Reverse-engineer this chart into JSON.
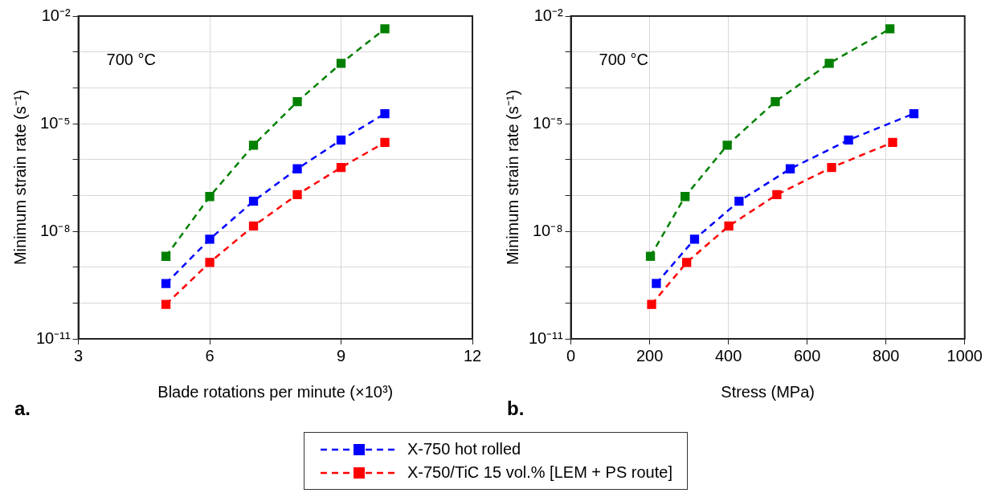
{
  "chart_data": [
    {
      "type": "line",
      "xlabel": "Blade rotations per minute (×10³)",
      "ylabel": "Minimum strain rate (s⁻¹)",
      "annotations": [
        "700 °C",
        "a."
      ],
      "x": [
        5,
        6,
        7,
        8,
        9,
        10
      ],
      "series": [
        {
          "color": "#008000",
          "values": [
            2e-09,
            9.3e-08,
            2.5e-06,
            4.1e-05,
            0.00048,
            0.0044
          ]
        },
        {
          "name": "X-750 hot rolled",
          "color": "#0000ff",
          "values": [
            3.5e-10,
            6e-09,
            6.9e-08,
            5.5e-07,
            3.5e-06,
            1.9e-05
          ]
        },
        {
          "name": "X-750/TiC 15 vol.% [LEM + PS route]",
          "color": "#ff0000",
          "values": [
            9.1e-11,
            1.35e-09,
            1.4e-08,
            1.05e-07,
            6e-07,
            3e-06
          ]
        }
      ],
      "xlim": [
        3,
        12
      ],
      "xticks": [
        3,
        6,
        9,
        12
      ],
      "ylim": [
        1e-11,
        0.01
      ],
      "yticks": [
        {
          "value": 1e-11,
          "label": "10⁻¹¹"
        },
        {
          "value": 1e-10,
          "label": null
        },
        {
          "value": 1e-09,
          "label": null
        },
        {
          "value": 1e-08,
          "label": "10⁻⁸"
        },
        {
          "value": 1e-07,
          "label": null
        },
        {
          "value": 1e-06,
          "label": null
        },
        {
          "value": 1e-05,
          "label": "10⁻⁵"
        },
        {
          "value": 0.0001,
          "label": null
        },
        {
          "value": 0.001,
          "label": null
        },
        {
          "value": 0.01,
          "label": "10⁻²"
        }
      ],
      "log": "y",
      "grid": true,
      "legend": "bottom",
      "marker": "square",
      "line_style": "dashed"
    },
    {
      "type": "line",
      "xlabel": "Stress (MPa)",
      "ylabel": "Minimum strain rate (s⁻¹)",
      "annotations": [
        "700 °C",
        "b."
      ],
      "series": [
        {
          "color": "#008000",
          "x": [
            202,
            290,
            397,
            519,
            656,
            810
          ],
          "values": [
            2e-09,
            9.3e-08,
            2.5e-06,
            4.1e-05,
            0.00048,
            0.0044
          ]
        },
        {
          "color": "#0000ff",
          "x": [
            217,
            314,
            427,
            557,
            705,
            871
          ],
          "values": [
            3.5e-10,
            6e-09,
            6.9e-08,
            5.5e-07,
            3.5e-06,
            1.9e-05
          ]
        },
        {
          "color": "#ff0000",
          "x": [
            205,
            294,
            401,
            523,
            662,
            817
          ],
          "values": [
            9.1e-11,
            1.35e-09,
            1.4e-08,
            1.05e-07,
            6e-07,
            3e-06
          ]
        }
      ],
      "xlim": [
        0,
        1000
      ],
      "xticks": [
        0,
        200,
        400,
        600,
        800,
        1000
      ],
      "ylim": [
        1e-11,
        0.01
      ],
      "yticks": [
        {
          "value": 1e-11,
          "label": "10⁻¹¹"
        },
        {
          "value": 1e-10,
          "label": null
        },
        {
          "value": 1e-09,
          "label": null
        },
        {
          "value": 1e-08,
          "label": "10⁻⁸"
        },
        {
          "value": 1e-07,
          "label": null
        },
        {
          "value": 1e-06,
          "label": null
        },
        {
          "value": 1e-05,
          "label": "10⁻⁵"
        },
        {
          "value": 0.0001,
          "label": null
        },
        {
          "value": 0.001,
          "label": null
        },
        {
          "value": 0.01,
          "label": "10⁻²"
        }
      ],
      "log": "y",
      "grid": true,
      "marker": "square",
      "line_style": "dashed"
    }
  ]
}
